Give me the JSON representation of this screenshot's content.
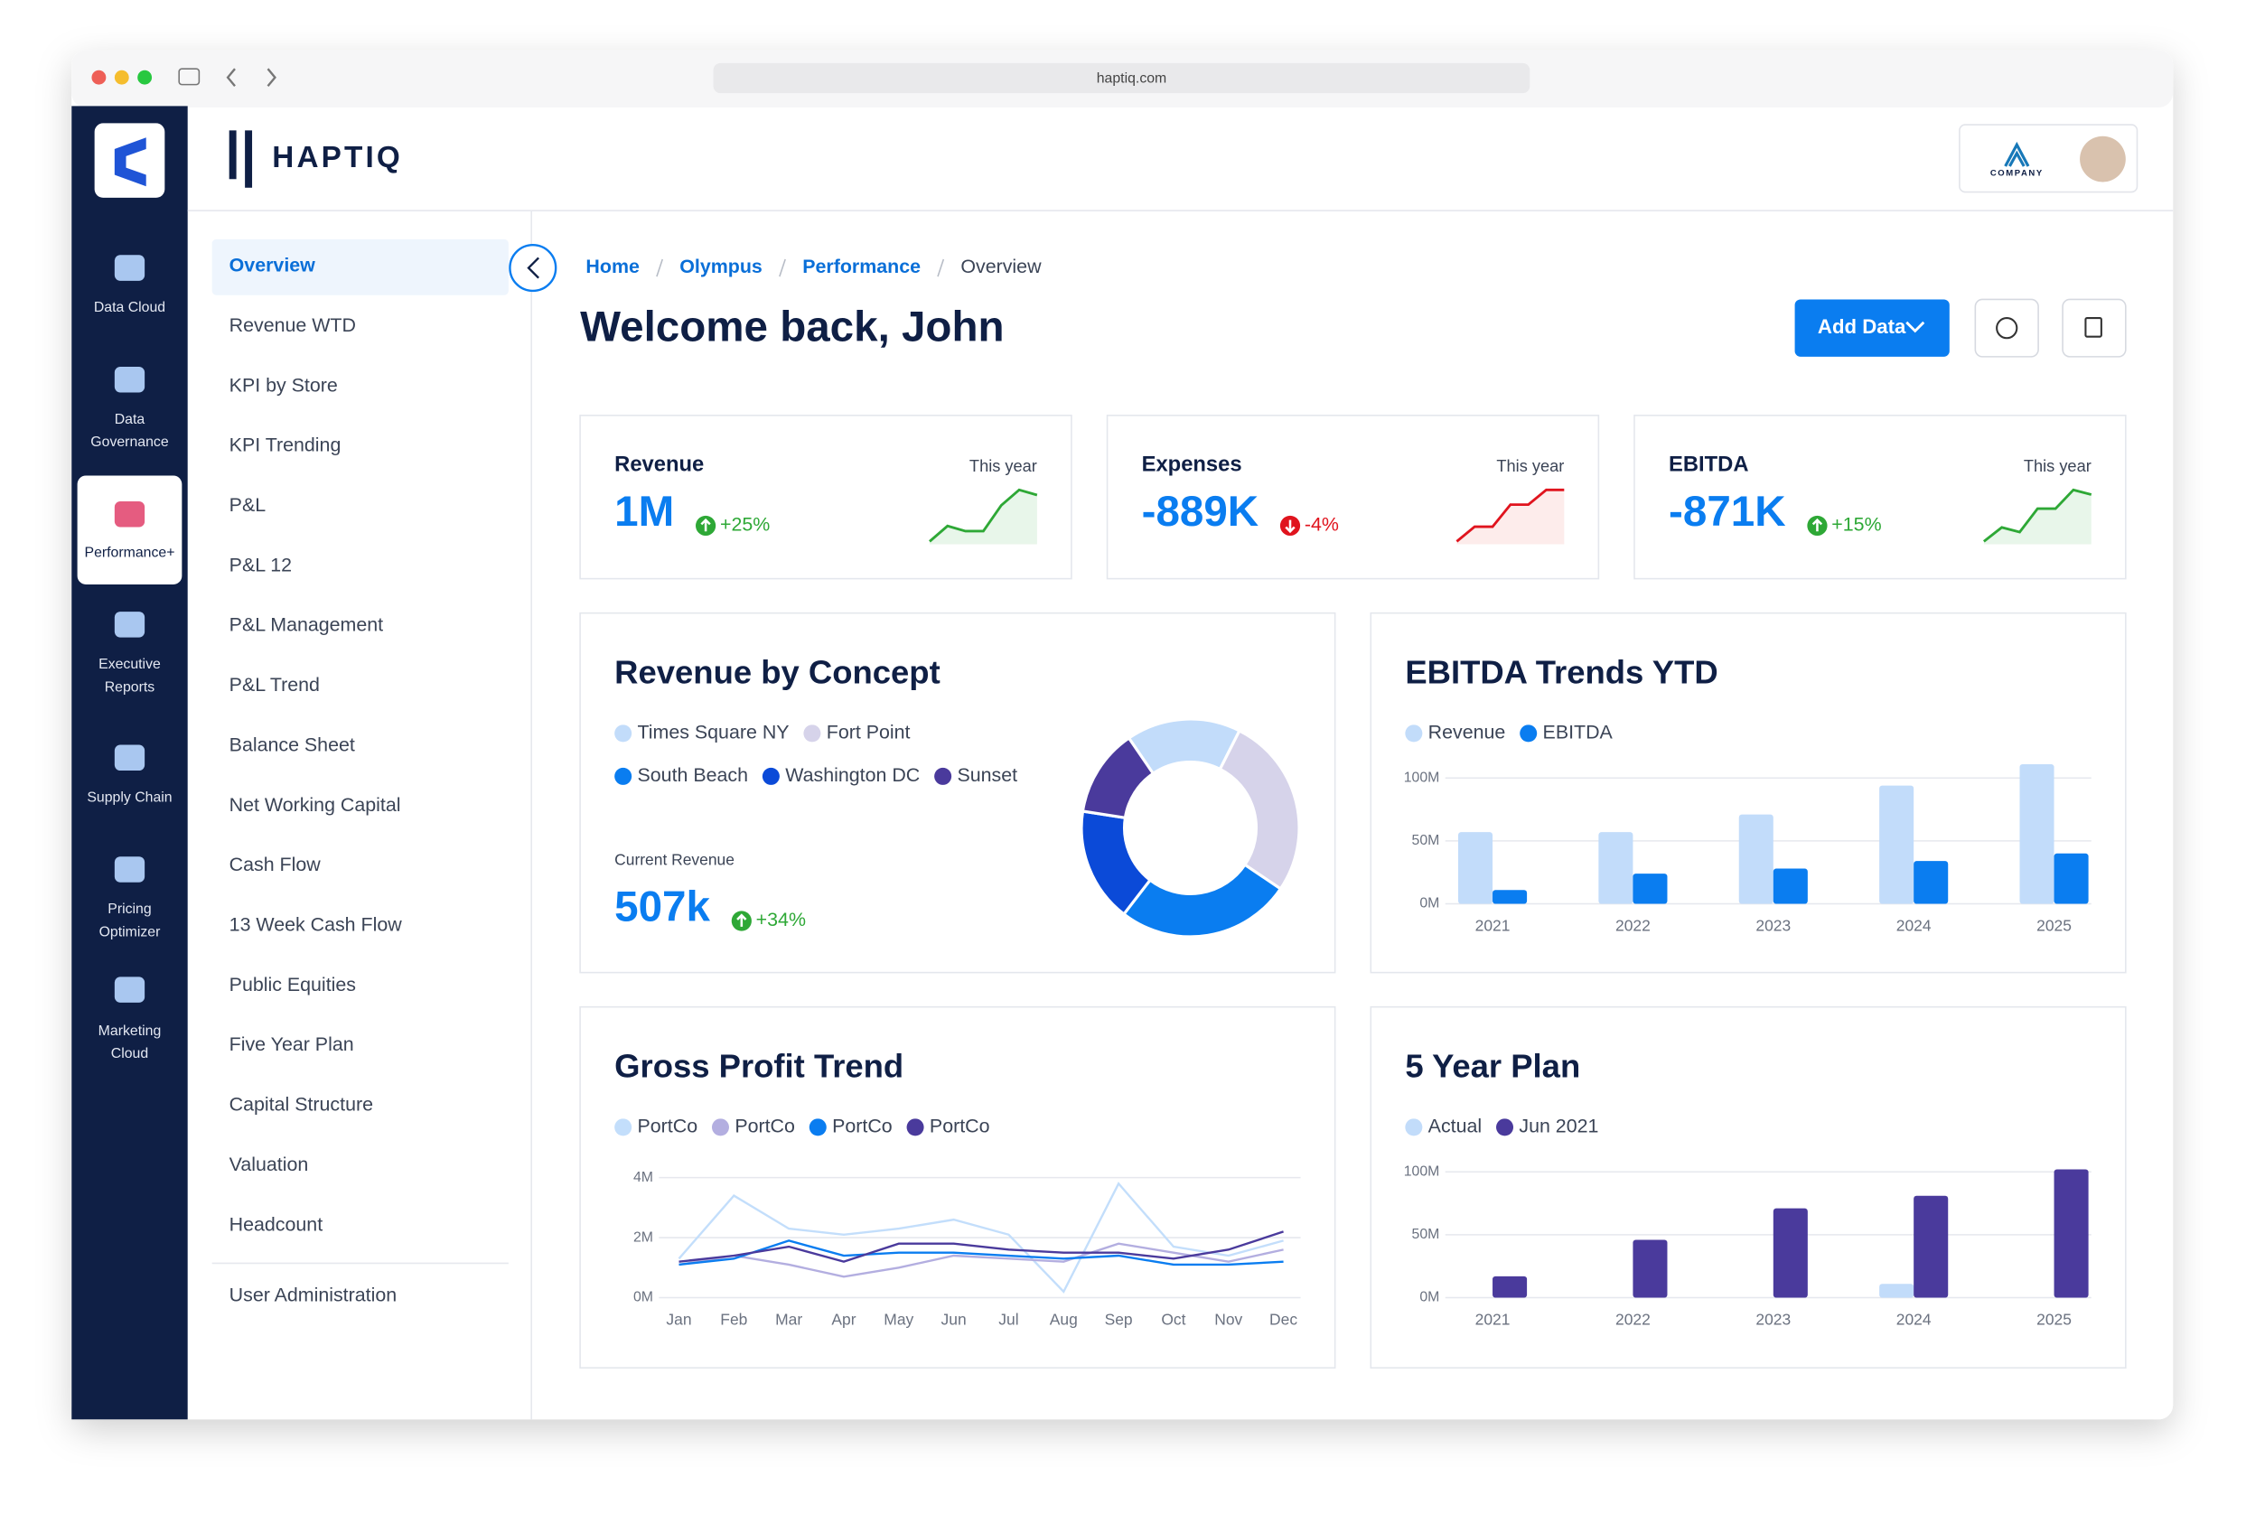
{
  "browser": {
    "url": "haptiq.com"
  },
  "apps": [
    {
      "lines": [
        "Data Cloud"
      ]
    },
    {
      "lines": [
        "Data",
        "Governance"
      ]
    },
    {
      "lines": [
        "Performance+"
      ]
    },
    {
      "lines": [
        "Executive",
        "Reports"
      ]
    },
    {
      "lines": [
        "Supply Chain"
      ]
    },
    {
      "lines": [
        "Pricing",
        "Optimizer"
      ]
    },
    {
      "lines": [
        "Marketing",
        "Cloud"
      ]
    }
  ],
  "brand": "HAPTIQ",
  "company": "COMPANY",
  "nav": {
    "items": [
      "Overview",
      "Revenue WTD",
      "KPI by Store",
      "KPI Trending",
      "P&L",
      "P&L 12",
      "P&L Management",
      "P&L Trend",
      "Balance Sheet",
      "Net Working Capital",
      "Cash Flow",
      "13 Week Cash Flow",
      "Public Equities",
      "Five Year Plan",
      "Capital Structure",
      "Valuation",
      "Headcount"
    ],
    "footer": "User Administration"
  },
  "breadcrumb": [
    "Home",
    "Olympus",
    "Performance",
    "Overview"
  ],
  "heading": "Welcome back, John",
  "add_data": "Add Data",
  "kpis": [
    {
      "label": "Revenue",
      "period": "This year",
      "value": "1M",
      "change": "+25%",
      "trend": [
        0,
        3,
        2,
        2,
        7,
        10,
        9
      ]
    },
    {
      "label": "Expenses",
      "period": "This year",
      "value": "-889K",
      "change": "-4%",
      "trend": [
        0,
        2,
        2,
        5,
        5,
        7,
        7
      ]
    },
    {
      "label": "EBITDA",
      "period": "This year",
      "value": "-871K",
      "change": "+15%",
      "trend": [
        0,
        3,
        2,
        7,
        7,
        11,
        10
      ]
    }
  ],
  "chart_data": [
    {
      "type": "pie",
      "title": "Revenue by Concept",
      "categories": [
        "Times Square NY",
        "Fort Point",
        "South Beach",
        "Washington DC",
        "Sunset"
      ],
      "values": [
        17,
        27,
        26,
        17,
        13
      ],
      "colors": [
        "#c2dcfa",
        "#d6d3ea",
        "#0a7df0",
        "#0b4ad8",
        "#4a3a9c"
      ],
      "current_label": "Current Revenue",
      "current_value": "507k",
      "current_change": "+34%"
    },
    {
      "type": "bar",
      "title": "EBITDA Trends YTD",
      "categories": [
        "2021",
        "2022",
        "2023",
        "2024",
        "2025"
      ],
      "series": [
        {
          "name": "Revenue",
          "color": "#c2dcfa",
          "values": [
            57,
            57,
            71,
            94,
            111
          ]
        },
        {
          "name": "EBITDA",
          "color": "#0a7df0",
          "values": [
            11,
            24,
            28,
            34,
            40
          ]
        }
      ],
      "ylim": [
        0,
        115
      ],
      "yticks": [
        {
          "value": 0,
          "label": "0M"
        },
        {
          "value": 50,
          "label": "50M"
        },
        {
          "value": 100,
          "label": "100M"
        }
      ],
      "grid": true
    },
    {
      "type": "line",
      "title": "Gross Profit Trend",
      "categories": [
        "Jan",
        "Feb",
        "Mar",
        "Apr",
        "May",
        "Jun",
        "Jul",
        "Aug",
        "Sep",
        "Oct",
        "Nov",
        "Dec"
      ],
      "series": [
        {
          "name": "PortCo",
          "color": "#c3defb",
          "values": [
            1.3,
            3.4,
            2.3,
            2.1,
            2.3,
            2.6,
            2.1,
            0.2,
            3.8,
            1.7,
            1.4,
            1.9
          ]
        },
        {
          "name": "PortCo",
          "color": "#b3aee0",
          "values": [
            1.1,
            1.4,
            1.1,
            0.7,
            1.0,
            1.4,
            1.3,
            1.2,
            1.8,
            1.5,
            1.2,
            1.6
          ]
        },
        {
          "name": "PortCo",
          "color": "#0a7df0",
          "values": [
            1.1,
            1.3,
            1.9,
            1.4,
            1.5,
            1.5,
            1.4,
            1.3,
            1.4,
            1.1,
            1.1,
            1.2
          ]
        },
        {
          "name": "PortCo",
          "color": "#4a3a9c",
          "values": [
            1.2,
            1.4,
            1.7,
            1.2,
            1.8,
            1.8,
            1.6,
            1.5,
            1.5,
            1.3,
            1.6,
            2.2
          ]
        }
      ],
      "ylim": [
        0,
        4.2
      ],
      "yticks": [
        {
          "value": 0,
          "label": "0M"
        },
        {
          "value": 2,
          "label": "2M"
        },
        {
          "value": 4,
          "label": "4M"
        }
      ],
      "grid": true
    },
    {
      "type": "bar",
      "title": "5 Year Plan",
      "categories": [
        "2021",
        "2022",
        "2023",
        "2024",
        "2025"
      ],
      "series": [
        {
          "name": "Actual",
          "color": "#c2dcfa",
          "values": [
            null,
            null,
            null,
            11,
            null
          ]
        },
        {
          "name": "Jun 2021",
          "color": "#4a3a9c",
          "values": [
            17,
            46,
            71,
            81,
            102
          ]
        }
      ],
      "ylim": [
        0,
        115
      ],
      "yticks": [
        {
          "value": 0,
          "label": "0M"
        },
        {
          "value": 50,
          "label": "50M"
        },
        {
          "value": 100,
          "label": "100M"
        }
      ],
      "grid": true
    }
  ]
}
